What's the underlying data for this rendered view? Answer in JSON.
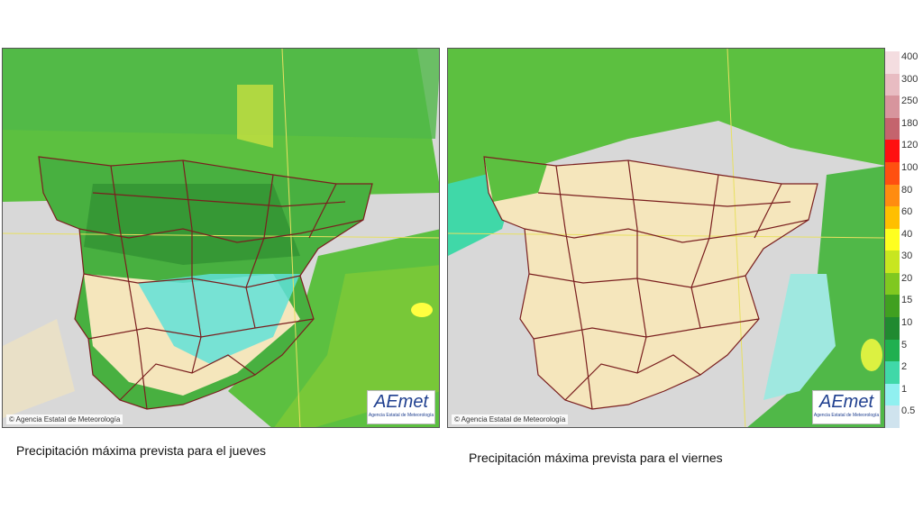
{
  "maps": [
    {
      "copyright": "© Agencia Estatal de Meteorología",
      "logo": "AEmet",
      "logo_subtitle": "Agencia Estatal de Meteorología",
      "caption": "Precipitación máxima prevista para el jueves"
    },
    {
      "copyright": "© Agencia Estatal de Meteorología",
      "logo": "AEmet",
      "logo_subtitle": "Agencia Estatal de Meteorología",
      "caption": "Precipitación máxima prevista para el viernes"
    }
  ],
  "legend": {
    "items": [
      {
        "label": "400",
        "color": "#f4dde0"
      },
      {
        "label": "300",
        "color": "#e8bcc2"
      },
      {
        "label": "250",
        "color": "#d7959d"
      },
      {
        "label": "180",
        "color": "#c4646d"
      },
      {
        "label": "120",
        "color": "#ff1010"
      },
      {
        "label": "100",
        "color": "#ff5010"
      },
      {
        "label": "80",
        "color": "#ff8c10"
      },
      {
        "label": "60",
        "color": "#ffbf00"
      },
      {
        "label": "40",
        "color": "#ffff20"
      },
      {
        "label": "30",
        "color": "#c8e620"
      },
      {
        "label": "20",
        "color": "#80c820"
      },
      {
        "label": "15",
        "color": "#40a020"
      },
      {
        "label": "10",
        "color": "#208a30"
      },
      {
        "label": "5",
        "color": "#20b050"
      },
      {
        "label": "2",
        "color": "#40d8a8"
      },
      {
        "label": "1",
        "color": "#90f0f0"
      },
      {
        "label": "0.5",
        "color": "#cfe3ee"
      }
    ]
  }
}
